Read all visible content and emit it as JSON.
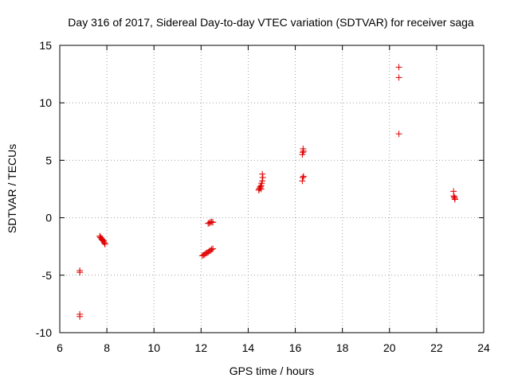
{
  "chart_data": {
    "type": "scatter",
    "title": "Day 316 of 2017, Sidereal Day-to-day VTEC variation (SDTVAR) for receiver saga",
    "xlabel": "GPS time / hours",
    "ylabel": "SDTVAR / TECUs",
    "xlim": [
      6,
      24
    ],
    "ylim": [
      -10,
      15
    ],
    "xticks": [
      6,
      8,
      10,
      12,
      14,
      16,
      18,
      20,
      22,
      24
    ],
    "yticks": [
      -10,
      -5,
      0,
      5,
      10,
      15
    ],
    "grid": true,
    "marker": "+",
    "series": [
      {
        "name": "SDTVAR",
        "color": "#e00000",
        "points": [
          [
            6.85,
            -4.6
          ],
          [
            6.85,
            -4.75
          ],
          [
            6.85,
            -8.4
          ],
          [
            6.85,
            -8.6
          ],
          [
            7.7,
            -1.6
          ],
          [
            7.72,
            -1.7
          ],
          [
            7.75,
            -1.75
          ],
          [
            7.78,
            -1.85
          ],
          [
            7.8,
            -1.9
          ],
          [
            7.82,
            -1.95
          ],
          [
            7.85,
            -2.0
          ],
          [
            7.87,
            -2.1
          ],
          [
            7.9,
            -2.2
          ],
          [
            7.92,
            -2.3
          ],
          [
            12.05,
            -3.3
          ],
          [
            12.1,
            -3.25
          ],
          [
            12.15,
            -3.2
          ],
          [
            12.2,
            -3.1
          ],
          [
            12.25,
            -3.05
          ],
          [
            12.3,
            -3.0
          ],
          [
            12.35,
            -2.9
          ],
          [
            12.4,
            -2.85
          ],
          [
            12.45,
            -2.75
          ],
          [
            12.5,
            -2.7
          ],
          [
            12.3,
            -0.5
          ],
          [
            12.35,
            -0.45
          ],
          [
            12.4,
            -0.4
          ],
          [
            12.45,
            -0.35
          ],
          [
            12.5,
            -0.4
          ],
          [
            14.45,
            2.4
          ],
          [
            14.47,
            2.5
          ],
          [
            14.5,
            2.6
          ],
          [
            14.52,
            2.7
          ],
          [
            14.55,
            2.8
          ],
          [
            14.57,
            3.0
          ],
          [
            14.6,
            3.2
          ],
          [
            14.62,
            3.5
          ],
          [
            14.6,
            3.8
          ],
          [
            14.55,
            2.5
          ],
          [
            16.3,
            3.2
          ],
          [
            16.32,
            3.5
          ],
          [
            16.35,
            3.6
          ],
          [
            16.3,
            5.5
          ],
          [
            16.32,
            5.7
          ],
          [
            16.35,
            5.8
          ],
          [
            16.33,
            6.0
          ],
          [
            20.4,
            13.1
          ],
          [
            20.4,
            12.2
          ],
          [
            20.4,
            7.3
          ],
          [
            22.72,
            2.3
          ],
          [
            22.73,
            1.9
          ],
          [
            22.75,
            1.8
          ],
          [
            22.77,
            1.7
          ],
          [
            22.78,
            1.6
          ]
        ]
      }
    ]
  }
}
